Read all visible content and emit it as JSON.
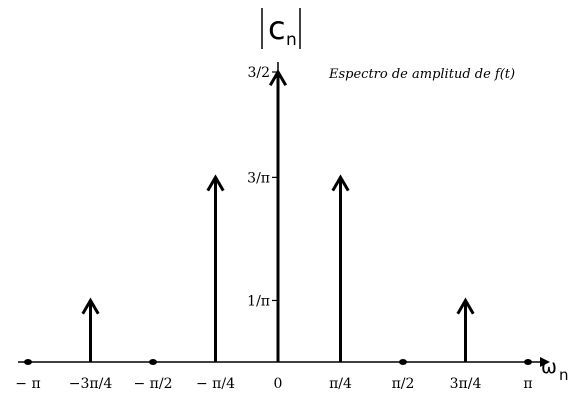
{
  "chart_data": {
    "type": "stem",
    "annotation": "Espectro de amplitud de f(t)",
    "ylabel_main": "c",
    "ylabel_sub": "n",
    "xlabel_main": "ω",
    "xlabel_sub": "n",
    "xlim": [
      -3.14159,
      3.14159
    ],
    "ylim": [
      0,
      1.5
    ],
    "grid": false,
    "x_ticks": [
      {
        "value": -3.14159,
        "label": "− π"
      },
      {
        "value": -2.35619,
        "label": "−3π/4"
      },
      {
        "value": -1.5708,
        "label": "− π/2"
      },
      {
        "value": -0.7854,
        "label": "− π/4"
      },
      {
        "value": 0,
        "label": "0"
      },
      {
        "value": 0.7854,
        "label": "π/4"
      },
      {
        "value": 1.5708,
        "label": "π/2"
      },
      {
        "value": 2.35619,
        "label": "3π/4"
      },
      {
        "value": 3.14159,
        "label": "π"
      }
    ],
    "y_ticks": [
      {
        "value": 0.31831,
        "label": "1/π"
      },
      {
        "value": 0.95493,
        "label": "3/π"
      },
      {
        "value": 1.5,
        "label": "3/2"
      }
    ],
    "x": [
      -3.14159,
      -2.35619,
      -1.5708,
      -0.7854,
      0,
      0.7854,
      1.5708,
      2.35619,
      3.14159
    ],
    "values": [
      0,
      0.31831,
      0,
      0.95493,
      1.5,
      0.95493,
      0,
      0.31831,
      0
    ]
  }
}
